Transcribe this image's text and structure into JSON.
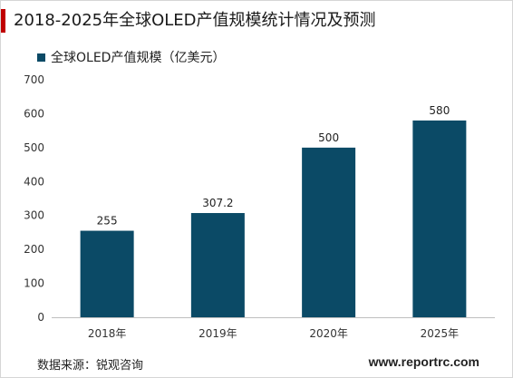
{
  "page": {
    "title": "2018-2025年全球OLED产值规模统计情况及预测",
    "source": "数据来源：锐观咨询",
    "website": "www.reportrc.com",
    "accent_color": "#c00000"
  },
  "chart_data": {
    "type": "bar",
    "categories": [
      "2018年",
      "2019年",
      "2020年",
      "2025年"
    ],
    "series": [
      {
        "name": "全球OLED产值规模（亿美元）",
        "values": [
          255,
          307.2,
          500,
          580
        ],
        "color": "#0b4a66"
      }
    ],
    "data_labels": [
      "255",
      "307.2",
      "500",
      "580"
    ],
    "ylim": [
      0,
      700
    ],
    "yticks": [
      0,
      100,
      200,
      300,
      400,
      500,
      600,
      700
    ],
    "grid": false,
    "legend": "top-left"
  }
}
